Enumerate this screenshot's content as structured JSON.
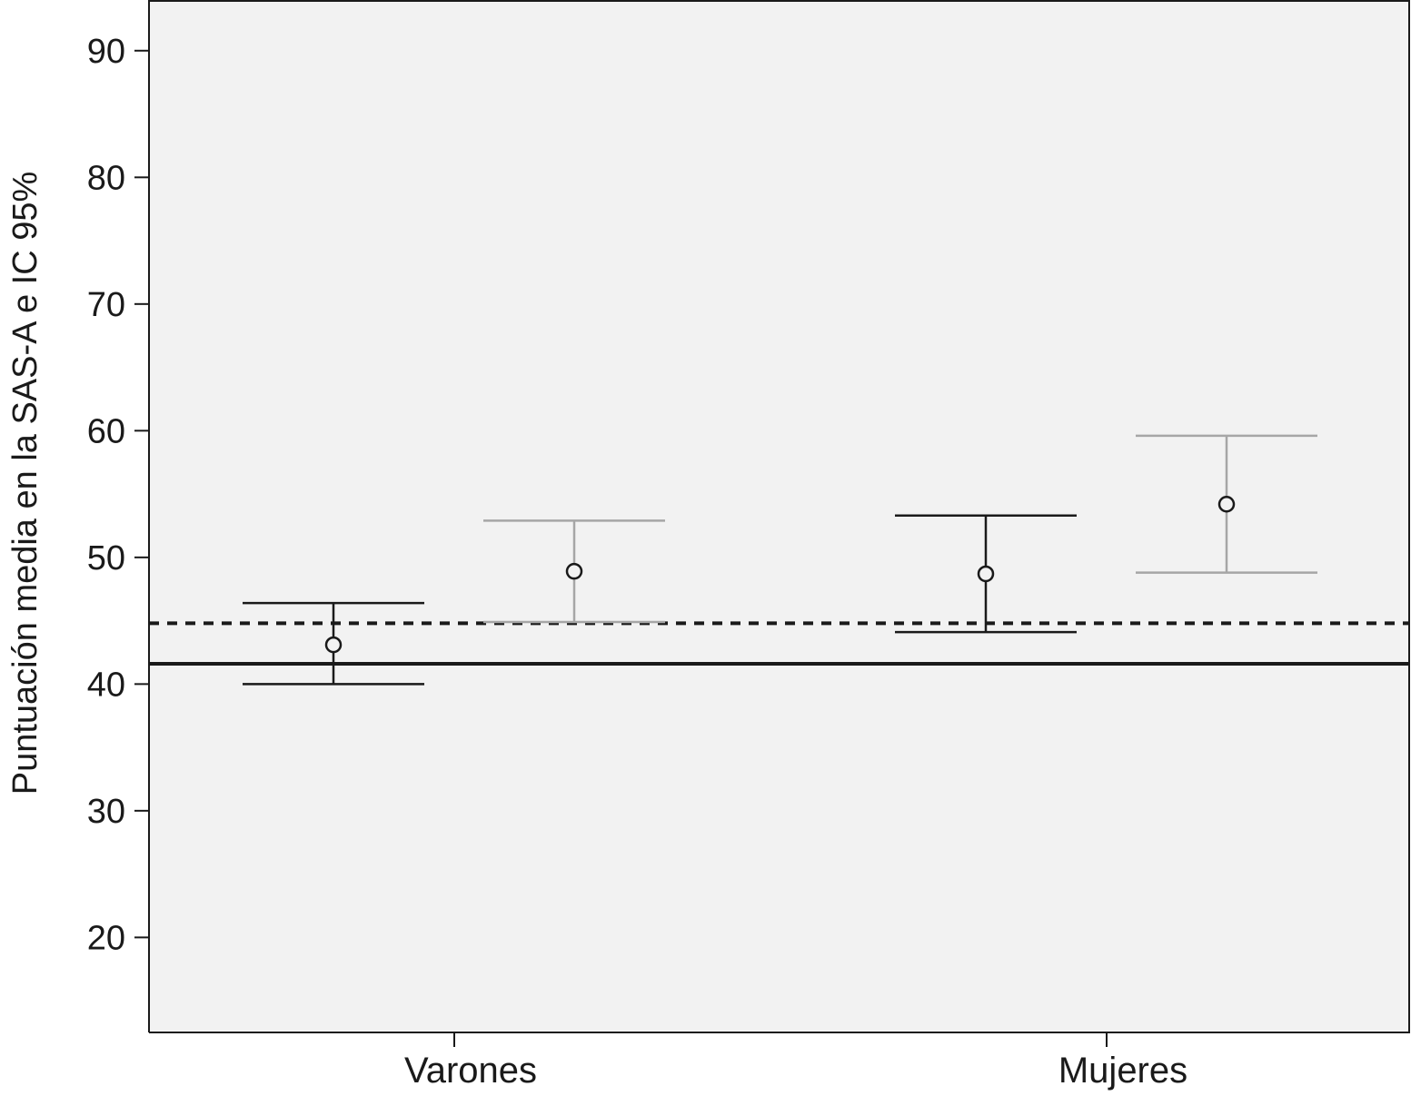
{
  "chart_data": {
    "type": "errorbar",
    "ylabel": "Puntuación media en la SAS-A e IC 95%",
    "xlabel": "",
    "categories": [
      "Varones",
      "Mujeres"
    ],
    "ylim": [
      12.5,
      94
    ],
    "yticks": [
      20,
      30,
      40,
      50,
      60,
      70,
      80,
      90
    ],
    "grid": false,
    "legend": "none",
    "series": [
      {
        "color": "#1a1a1a",
        "points": [
          {
            "category": "Varones",
            "mean": 43.1,
            "lower": 40.0,
            "upper": 46.4
          },
          {
            "category": "Mujeres",
            "mean": 48.7,
            "lower": 44.1,
            "upper": 53.3
          }
        ]
      },
      {
        "color": "#a6a6a6",
        "points": [
          {
            "category": "Varones",
            "mean": 48.9,
            "lower": 44.9,
            "upper": 52.9
          },
          {
            "category": "Mujeres",
            "mean": 54.2,
            "lower": 48.8,
            "upper": 59.6
          }
        ]
      }
    ],
    "reference_lines": [
      {
        "y": 41.6,
        "style": "solid",
        "color": "#1a1a1a"
      },
      {
        "y": 44.8,
        "style": "dotted",
        "color": "#1a1a1a"
      }
    ],
    "plot_background": "#f2f2f2"
  }
}
